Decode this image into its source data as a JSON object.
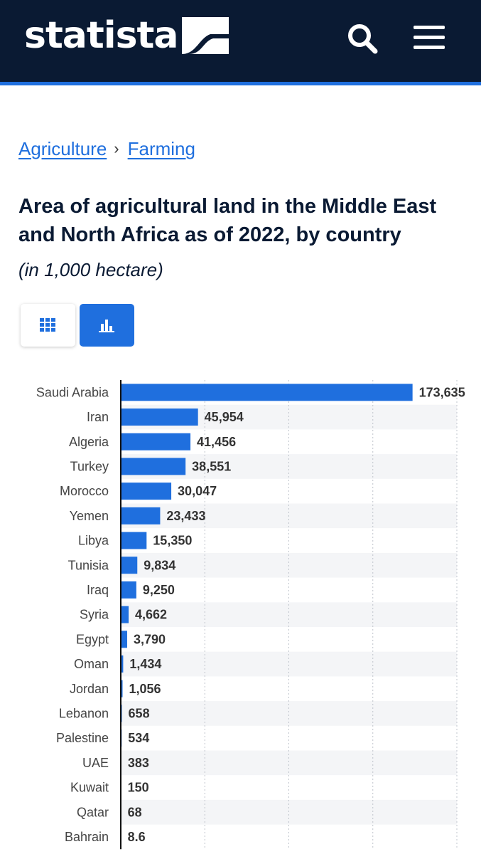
{
  "brand": {
    "name": "statista"
  },
  "header": {
    "search_icon": "search-icon",
    "menu_icon": "hamburger-menu-icon"
  },
  "breadcrumb": {
    "items": [
      "Agriculture",
      "Farming"
    ],
    "separator": "›"
  },
  "chart_title": "Area of agricultural land in the Middle East and North Africa as of 2022, by country",
  "chart_subtitle": "(in 1,000 hectare)",
  "view_toggle": {
    "options": [
      "table",
      "chart"
    ],
    "selected": "chart",
    "icons": [
      "grid-icon",
      "bar-chart-icon"
    ]
  },
  "colors": {
    "header_bg": "#0a1a33",
    "accent": "#1f6fde",
    "bar": "#1f6fde",
    "row_stripe": "#f4f5f7",
    "value_text": "#333333"
  },
  "chart_data": {
    "type": "bar",
    "orientation": "horizontal",
    "categories": [
      "Saudi Arabia",
      "Iran",
      "Algeria",
      "Turkey",
      "Morocco",
      "Yemen",
      "Libya",
      "Tunisia",
      "Iraq",
      "Syria",
      "Egypt",
      "Oman",
      "Jordan",
      "Lebanon",
      "Palestine",
      "UAE",
      "Kuwait",
      "Qatar",
      "Bahrain"
    ],
    "values": [
      173635,
      45954,
      41456,
      38551,
      30047,
      23433,
      15350,
      9834,
      9250,
      4662,
      3790,
      1434,
      1056,
      658,
      534,
      383,
      150,
      68,
      8.6
    ],
    "value_labels": [
      "173,635",
      "45,954",
      "41,456",
      "38,551",
      "30,047",
      "23,433",
      "15,350",
      "9,834",
      "9,250",
      "4,662",
      "3,790",
      "1,434",
      "1,056",
      "658",
      "534",
      "383",
      "150",
      "68",
      "8.6"
    ],
    "xlim": [
      0,
      200000
    ],
    "gridlines": [
      50000,
      100000,
      150000,
      200000
    ],
    "grid": true,
    "unit": "1,000 hectare"
  }
}
